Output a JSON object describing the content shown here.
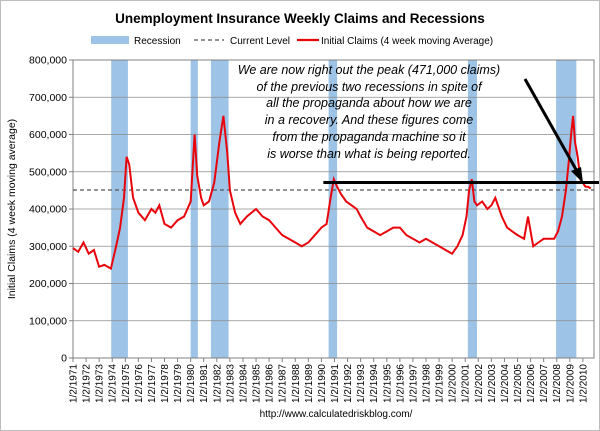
{
  "chart_data": {
    "type": "line",
    "title": "Unemployment Insurance Weekly Claims and Recessions",
    "ylabel": "Initial Claims (4 week moving average)",
    "xlabel": "",
    "ylim": [
      0,
      800000
    ],
    "y_ticks": [
      "0",
      "100,000",
      "200,000",
      "300,000",
      "400,000",
      "500,000",
      "600,000",
      "700,000",
      "800,000"
    ],
    "x_range": [
      1971.0,
      2010.85
    ],
    "x_tick_labels": [
      "1/2/1971",
      "1/2/1972",
      "1/2/1973",
      "1/2/1974",
      "1/2/1975",
      "1/2/1976",
      "1/2/1977",
      "1/2/1978",
      "1/2/1979",
      "1/2/1980",
      "1/2/1981",
      "1/2/1982",
      "1/2/1983",
      "1/2/1984",
      "1/2/1985",
      "1/2/1986",
      "1/2/1987",
      "1/2/1988",
      "1/2/1989",
      "1/2/1990",
      "1/2/1991",
      "1/2/1992",
      "1/2/1993",
      "1/2/1994",
      "1/2/1995",
      "1/2/1996",
      "1/2/1997",
      "1/2/1998",
      "1/2/1999",
      "1/2/2000",
      "1/2/2001",
      "1/2/2002",
      "1/2/2003",
      "1/2/2004",
      "1/2/2005",
      "1/2/2006",
      "1/2/2007",
      "1/2/2008",
      "1/2/2009",
      "1/2/2010"
    ],
    "grid": true,
    "legend_position": "top",
    "legend": [
      {
        "label": "Recession",
        "kind": "box",
        "color": "#9dc3e6"
      },
      {
        "label": "Current Level",
        "kind": "dash",
        "color": "#555555"
      },
      {
        "label": "Initial Claims (4 week moving Average)",
        "kind": "line",
        "color": "#e8050c"
      }
    ],
    "recessions": [
      [
        1973.92,
        1975.2
      ],
      [
        1980.0,
        1980.55
      ],
      [
        1981.55,
        1982.9
      ],
      [
        1990.55,
        1991.2
      ],
      [
        2001.2,
        2001.9
      ],
      [
        2007.95,
        2009.5
      ]
    ],
    "current_level": 451000,
    "series": [
      {
        "color": "#e8050c",
        "x": [
          1971.0,
          1971.4,
          1971.8,
          1972.2,
          1972.6,
          1973.0,
          1973.4,
          1973.9,
          1974.3,
          1974.6,
          1974.9,
          1975.1,
          1975.3,
          1975.6,
          1976.0,
          1976.5,
          1977.0,
          1977.3,
          1977.6,
          1978.0,
          1978.5,
          1979.0,
          1979.5,
          1980.0,
          1980.3,
          1980.5,
          1980.8,
          1981.0,
          1981.4,
          1981.8,
          1982.2,
          1982.5,
          1982.8,
          1983.0,
          1983.4,
          1983.8,
          1984.3,
          1985.0,
          1985.5,
          1986.0,
          1986.5,
          1987.0,
          1987.5,
          1988.0,
          1988.5,
          1989.0,
          1989.5,
          1990.0,
          1990.4,
          1990.7,
          1990.95,
          1991.2,
          1991.5,
          1991.9,
          1992.3,
          1992.7,
          1993.0,
          1993.5,
          1994.0,
          1994.5,
          1995.0,
          1995.5,
          1996.0,
          1996.5,
          1997.0,
          1997.5,
          1998.0,
          1998.5,
          1999.0,
          1999.5,
          2000.0,
          2000.4,
          2000.8,
          2001.1,
          2001.3,
          2001.5,
          2001.7,
          2001.9,
          2002.3,
          2002.7,
          2003.0,
          2003.3,
          2003.5,
          2003.8,
          2004.2,
          2004.6,
          2005.0,
          2005.5,
          2005.8,
          2006.2,
          2006.6,
          2007.0,
          2007.4,
          2007.8,
          2008.1,
          2008.4,
          2008.7,
          2008.9,
          2009.1,
          2009.25,
          2009.4,
          2009.6,
          2009.8,
          2010.0,
          2010.2,
          2010.4,
          2010.6
        ],
        "values": [
          295000,
          285000,
          310000,
          280000,
          290000,
          245000,
          250000,
          240000,
          300000,
          350000,
          430000,
          540000,
          520000,
          430000,
          390000,
          370000,
          400000,
          390000,
          410000,
          360000,
          350000,
          370000,
          380000,
          420000,
          600000,
          490000,
          430000,
          410000,
          420000,
          470000,
          580000,
          650000,
          550000,
          450000,
          390000,
          360000,
          380000,
          400000,
          380000,
          370000,
          350000,
          330000,
          320000,
          310000,
          300000,
          310000,
          330000,
          350000,
          360000,
          430000,
          480000,
          460000,
          440000,
          420000,
          410000,
          400000,
          380000,
          350000,
          340000,
          330000,
          340000,
          350000,
          350000,
          330000,
          320000,
          310000,
          320000,
          310000,
          300000,
          290000,
          280000,
          300000,
          330000,
          380000,
          450000,
          480000,
          420000,
          410000,
          420000,
          400000,
          410000,
          430000,
          410000,
          380000,
          350000,
          340000,
          330000,
          320000,
          380000,
          300000,
          310000,
          320000,
          320000,
          320000,
          340000,
          380000,
          450000,
          520000,
          600000,
          650000,
          580000,
          540000,
          480000,
          470000,
          460000,
          460000,
          455000
        ]
      }
    ],
    "annotation_lines": [
      "We are now right out the peak (471,000 claims)",
      "of the previous two recessions in spite of",
      "all the propaganda about how we are",
      "in a recovery. And these figures come",
      "from the propaganda machine so it",
      "is worse than what is being reported."
    ],
    "peak_line_level": 471000,
    "source": "http://www.calculatedriskblog.com/"
  }
}
